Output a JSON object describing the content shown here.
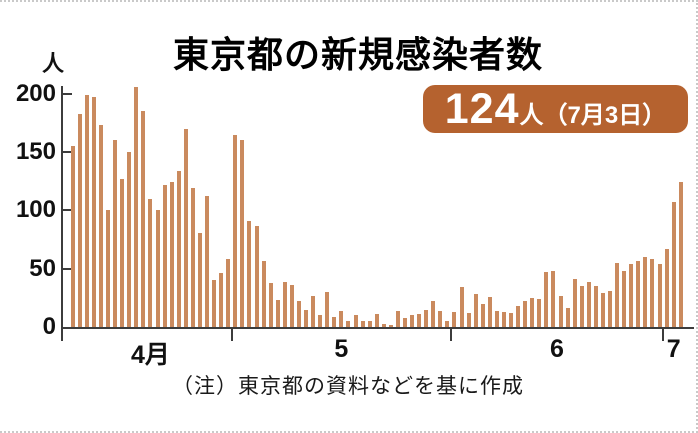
{
  "page": {
    "title": "東京都の新規感染者数",
    "note": "（注）東京都の資料などを基に作成"
  },
  "badge": {
    "value": "124",
    "suffix": "人（7月3日）"
  },
  "y_axis": {
    "unit": "人",
    "ticks": [
      "200",
      "150",
      "100",
      "50",
      "0"
    ]
  },
  "x_axis": {
    "labels": [
      "4月",
      "5",
      "6",
      "7"
    ]
  },
  "colors": {
    "bar": "#ca8a5e",
    "badge_bg": "#b5622f",
    "axis": "#3c3c3c"
  },
  "chart_data": {
    "type": "bar",
    "title": "東京都の新規感染者数",
    "ylabel": "人",
    "ylim": [
      0,
      200
    ],
    "yticks": [
      0,
      50,
      100,
      150,
      200
    ],
    "grid": false,
    "legend": "none",
    "annotation": "124人（7月3日）",
    "x_range": "4/8 - 7/3",
    "series": [
      {
        "name": "新規感染者数",
        "x": [
          "4/8",
          "4/9",
          "4/10",
          "4/11",
          "4/12",
          "4/13",
          "4/14",
          "4/15",
          "4/16",
          "4/17",
          "4/18",
          "4/19",
          "4/20",
          "4/21",
          "4/22",
          "4/23",
          "4/24",
          "4/25",
          "4/26",
          "4/27",
          "4/28",
          "4/29",
          "4/30",
          "5/1",
          "5/2",
          "5/3",
          "5/4",
          "5/5",
          "5/6",
          "5/7",
          "5/8",
          "5/9",
          "5/10",
          "5/11",
          "5/12",
          "5/13",
          "5/14",
          "5/15",
          "5/16",
          "5/17",
          "5/18",
          "5/19",
          "5/20",
          "5/21",
          "5/22",
          "5/23",
          "5/24",
          "5/25",
          "5/26",
          "5/27",
          "5/28",
          "5/29",
          "5/30",
          "5/31",
          "6/1",
          "6/2",
          "6/3",
          "6/4",
          "6/5",
          "6/6",
          "6/7",
          "6/8",
          "6/9",
          "6/10",
          "6/11",
          "6/12",
          "6/13",
          "6/14",
          "6/15",
          "6/16",
          "6/17",
          "6/18",
          "6/19",
          "6/20",
          "6/21",
          "6/22",
          "6/23",
          "6/24",
          "6/25",
          "6/26",
          "6/27",
          "6/28",
          "6/29",
          "6/30",
          "7/1",
          "7/2",
          "7/3"
        ],
        "values": [
          155,
          183,
          199,
          197,
          173,
          100,
          160,
          127,
          150,
          206,
          185,
          110,
          100,
          122,
          124,
          134,
          170,
          119,
          81,
          112,
          40,
          46,
          58,
          165,
          160,
          91,
          87,
          57,
          38,
          23,
          39,
          36,
          22,
          15,
          27,
          10,
          30,
          9,
          14,
          5,
          10,
          5,
          5,
          11,
          3,
          2,
          14,
          8,
          10,
          11,
          15,
          22,
          14,
          5,
          13,
          34,
          12,
          28,
          20,
          26,
          14,
          13,
          12,
          18,
          22,
          25,
          24,
          47,
          48,
          27,
          16,
          41,
          35,
          39,
          35,
          29,
          31,
          55,
          48,
          54,
          57,
          60,
          58,
          54,
          67,
          107,
          124
        ]
      }
    ]
  }
}
